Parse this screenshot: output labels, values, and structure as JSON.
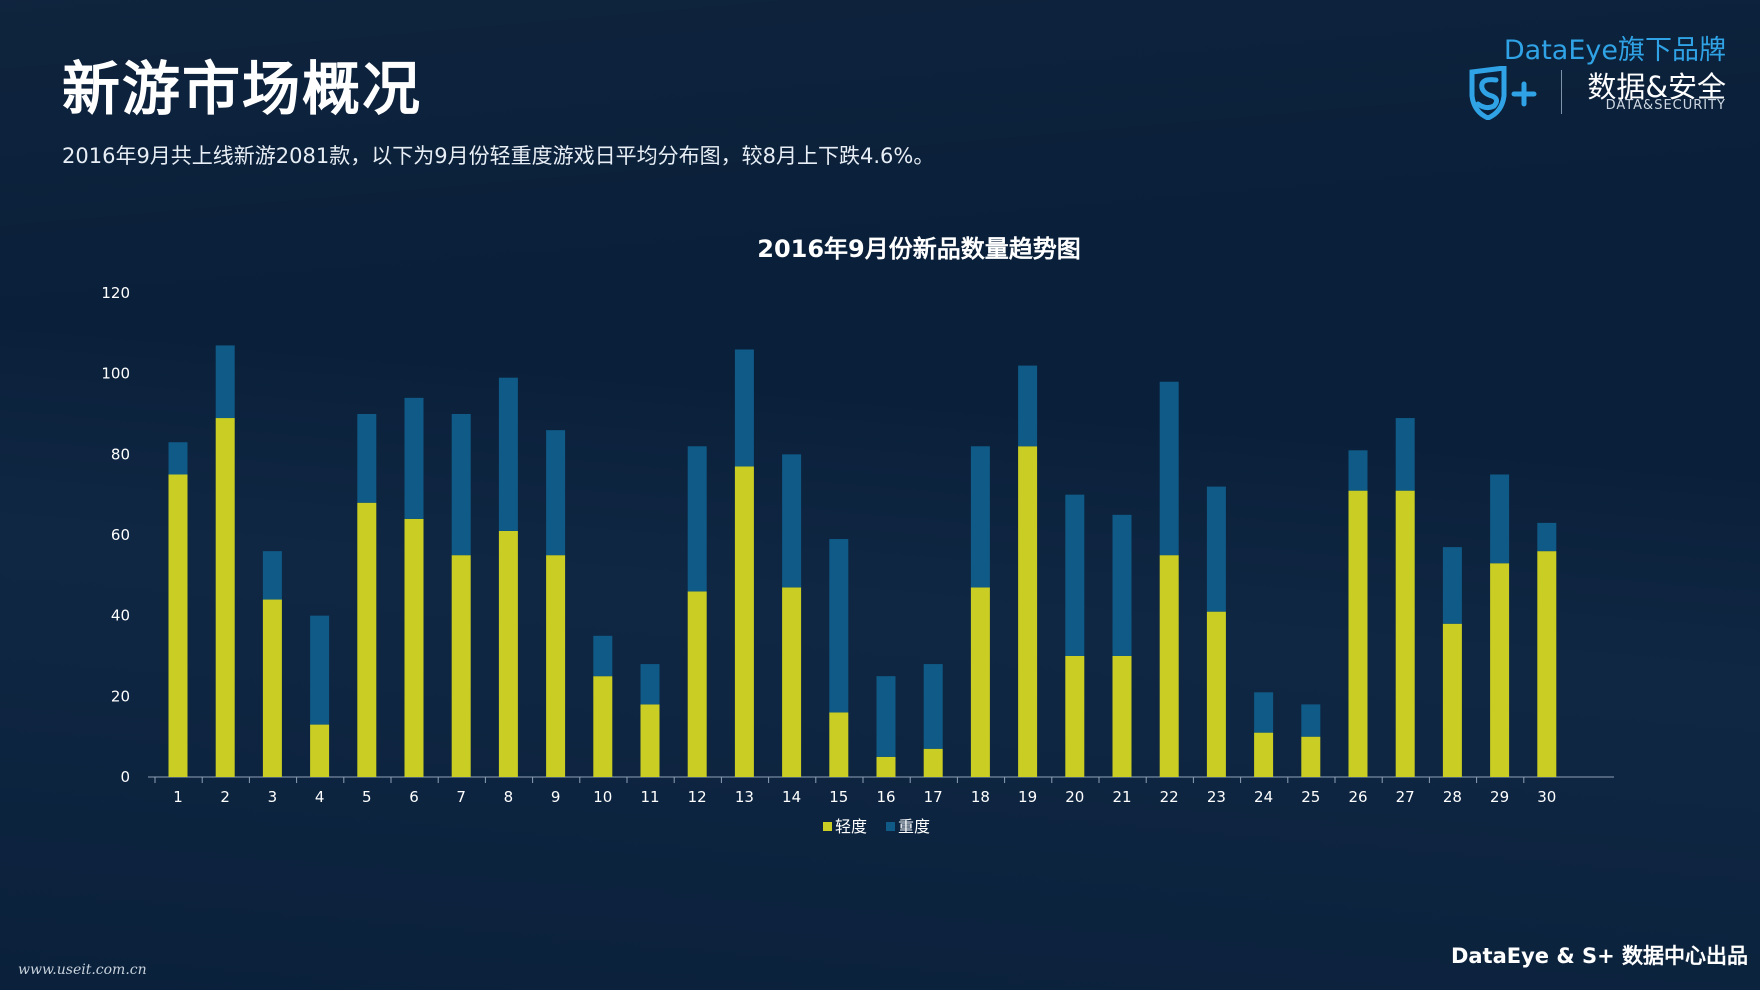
{
  "page": {
    "title": "新游市场概况",
    "subtitle": "2016年9月共上线新游2081款，以下为9月份轻重度游戏日平均分布图，较8月上下跌4.6%。"
  },
  "brand": {
    "top": "DataEye旗下品牌",
    "cn": "数据&安全",
    "en": "DATA&SECURITY",
    "logo_icon": "s-plus-shield-icon"
  },
  "footer": {
    "credit": "DataEye & S+ 数据中心出品",
    "watermark": "www.useit.com.cn"
  },
  "colors": {
    "background": "#0b2340",
    "light": "#c9cd24",
    "heavy": "#0f5a86",
    "axis_text": "#ffffff",
    "brand_blue": "#2fa3e6"
  },
  "chart_data": {
    "type": "bar",
    "stacked": true,
    "title": "2016年9月份新品数量趋势图",
    "xlabel": "",
    "ylabel": "",
    "ylim": [
      0,
      120
    ],
    "yticks": [
      0,
      20,
      40,
      60,
      80,
      100,
      120
    ],
    "grid": false,
    "legend_position": "bottom",
    "categories": [
      "1",
      "2",
      "3",
      "4",
      "5",
      "6",
      "7",
      "8",
      "9",
      "10",
      "11",
      "12",
      "13",
      "14",
      "15",
      "16",
      "17",
      "18",
      "19",
      "20",
      "21",
      "22",
      "23",
      "24",
      "25",
      "26",
      "27",
      "28",
      "29",
      "30"
    ],
    "series": [
      {
        "name": "轻度",
        "color": "#c9cd24",
        "values": [
          75,
          89,
          44,
          13,
          68,
          64,
          55,
          61,
          55,
          25,
          18,
          46,
          77,
          47,
          16,
          5,
          7,
          47,
          82,
          30,
          30,
          55,
          41,
          11,
          10,
          71,
          71,
          38,
          53,
          56
        ]
      },
      {
        "name": "重度",
        "color": "#0f5a86",
        "values": [
          8,
          18,
          12,
          27,
          22,
          30,
          35,
          38,
          31,
          10,
          10,
          36,
          29,
          33,
          43,
          20,
          21,
          35,
          20,
          40,
          35,
          43,
          31,
          10,
          8,
          10,
          18,
          19,
          22,
          7
        ]
      }
    ]
  }
}
